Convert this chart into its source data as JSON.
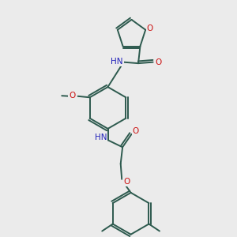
{
  "bg": "#ebebeb",
  "bc": "#2d5a4e",
  "nc": "#2222bb",
  "oc": "#cc1111",
  "lw": 1.4,
  "fs": 7.5,
  "figsize": [
    3.0,
    3.0
  ],
  "dpi": 100,
  "xlim": [
    0,
    10
  ],
  "ylim": [
    0,
    10
  ]
}
